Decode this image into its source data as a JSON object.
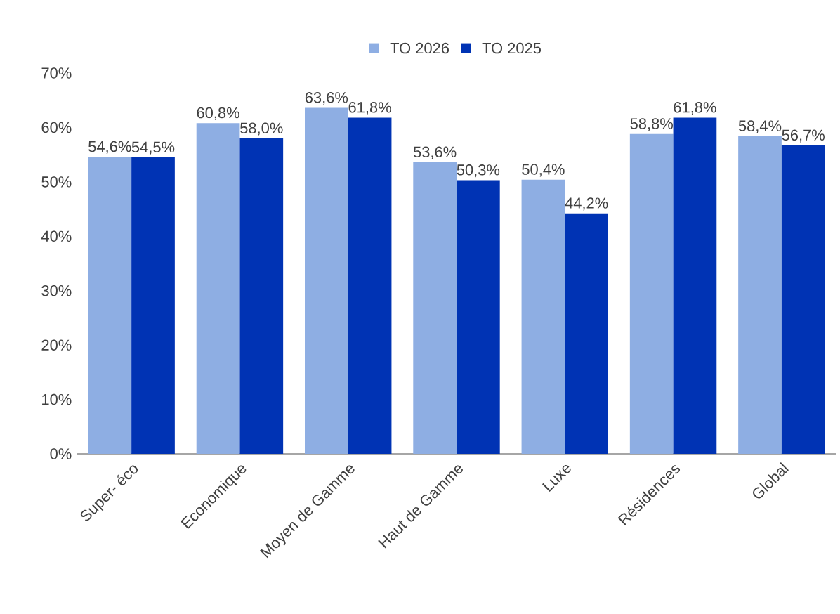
{
  "chart_data": {
    "type": "bar",
    "categories": [
      "Super- éco",
      "Economique",
      "Moyen de Gamme",
      "Haut de Gamme",
      "Luxe",
      "Résidences",
      "Global"
    ],
    "series": [
      {
        "name": "TO 2026",
        "color": "#8eaee3",
        "values": [
          54.6,
          60.8,
          63.6,
          53.6,
          50.4,
          58.8,
          58.4
        ],
        "value_labels": [
          "54,6%",
          "60,8%",
          "63,6%",
          "53,6%",
          "50,4%",
          "58,8%",
          "58,4%"
        ]
      },
      {
        "name": "TO 2025",
        "color": "#0033b4",
        "values": [
          54.5,
          58.0,
          61.8,
          50.3,
          44.2,
          61.8,
          56.7
        ],
        "value_labels": [
          "54,5%",
          "58,0%",
          "61,8%",
          "50,3%",
          "44,2%",
          "61,8%",
          "56,7%"
        ]
      }
    ],
    "ylim": [
      0,
      70
    ],
    "yticks": [
      {
        "value": 0,
        "label": "0%"
      },
      {
        "value": 10,
        "label": "10%"
      },
      {
        "value": 20,
        "label": "20%"
      },
      {
        "value": 30,
        "label": "30%"
      },
      {
        "value": 40,
        "label": "40%"
      },
      {
        "value": 50,
        "label": "50%"
      },
      {
        "value": 60,
        "label": "60%"
      },
      {
        "value": 70,
        "label": "70%"
      }
    ],
    "legend": "top",
    "grid": false
  }
}
